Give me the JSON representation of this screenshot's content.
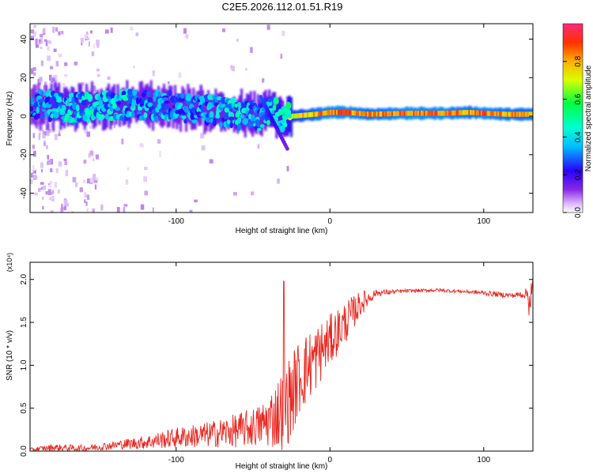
{
  "title": "C2E5.2026.112.01.51.R19",
  "colors": {
    "axis": "#000000",
    "snr_line": "#e8261f",
    "background": "#ffffff"
  },
  "colorbar": {
    "label": "Normalized spectral amplitude",
    "ticks": [
      "0.0",
      "0.2",
      "0.4",
      "0.6",
      "0.8"
    ],
    "tick_values": [
      0.0,
      0.2,
      0.4,
      0.6,
      0.8
    ],
    "range": [
      0,
      1
    ]
  },
  "chart_data": [
    {
      "type": "heatmap",
      "name": "spectrogram",
      "xlabel": "Height of straight line (km)",
      "ylabel": "Frequency (Hz)",
      "xlim": [
        -195,
        132
      ],
      "ylim": [
        -50,
        48
      ],
      "xticks": [
        -100,
        0,
        100
      ],
      "xtick_labels": [
        "-100",
        "0",
        "100"
      ],
      "yticks": [
        -40,
        -20,
        0,
        20,
        40
      ],
      "ytick_labels": [
        "-40",
        "-20",
        "0",
        "20",
        "40"
      ],
      "ridge": [
        {
          "x": -192,
          "freq": 6,
          "amp": 0.35
        },
        {
          "x": -180,
          "freq": 5,
          "amp": 0.45
        },
        {
          "x": -165,
          "freq": 4,
          "amp": 0.45
        },
        {
          "x": -150,
          "freq": 5,
          "amp": 0.45
        },
        {
          "x": -135,
          "freq": 6,
          "amp": 0.45
        },
        {
          "x": -120,
          "freq": 6,
          "amp": 0.4
        },
        {
          "x": -105,
          "freq": 5,
          "amp": 0.4
        },
        {
          "x": -90,
          "freq": 4,
          "amp": 0.4
        },
        {
          "x": -75,
          "freq": 3,
          "amp": 0.4
        },
        {
          "x": -60,
          "freq": 1,
          "amp": 0.45
        },
        {
          "x": -45,
          "freq": 0,
          "amp": 0.4
        },
        {
          "x": -38,
          "freq": 3,
          "amp": 0.5
        },
        {
          "x": -30,
          "freq": -2,
          "amp": 0.45
        },
        {
          "x": -25,
          "freq": 0,
          "amp": 0.75
        },
        {
          "x": -10,
          "freq": 1,
          "amp": 0.85
        },
        {
          "x": 0,
          "freq": 2,
          "amp": 0.9
        },
        {
          "x": 10,
          "freq": 2,
          "amp": 0.9
        },
        {
          "x": 25,
          "freq": 1,
          "amp": 0.85
        },
        {
          "x": 50,
          "freq": 1.5,
          "amp": 0.9
        },
        {
          "x": 75,
          "freq": 1.5,
          "amp": 0.9
        },
        {
          "x": 90,
          "freq": 2,
          "amp": 0.85
        },
        {
          "x": 100,
          "freq": 1.5,
          "amp": 0.9
        },
        {
          "x": 115,
          "freq": 1,
          "amp": 0.85
        },
        {
          "x": 130,
          "freq": 1,
          "amp": 0.85
        }
      ]
    },
    {
      "type": "line",
      "name": "snr",
      "xlabel": "Height of straight line (km)",
      "ylabel": "SNR (10 * v/v)",
      "yscale_label": "(x10⁴)",
      "xlim": [
        -195,
        132
      ],
      "ylim": [
        0,
        2.2
      ],
      "xticks": [
        -100,
        0,
        100
      ],
      "xtick_labels": [
        "-100",
        "0",
        "100"
      ],
      "yticks": [
        0.0,
        0.5,
        1.0,
        1.5,
        2.0
      ],
      "ytick_labels": [
        "0.0",
        "0.5",
        "1.0",
        "1.5",
        "2.0"
      ],
      "series": [
        {
          "name": "SNR",
          "x": [
            -195,
            -180,
            -160,
            -140,
            -120,
            -100,
            -80,
            -60,
            -45,
            -35,
            -30,
            -25,
            -20,
            -10,
            0,
            10,
            20,
            30,
            50,
            70,
            90,
            100,
            110,
            120,
            128,
            130
          ],
          "values": [
            0.02,
            0.05,
            0.04,
            0.08,
            0.12,
            0.18,
            0.22,
            0.28,
            0.35,
            0.5,
            0.6,
            0.75,
            0.95,
            1.15,
            1.35,
            1.55,
            1.75,
            1.85,
            1.87,
            1.88,
            1.86,
            1.85,
            1.83,
            1.82,
            1.85,
            1.85
          ],
          "spread": [
            0.02,
            0.04,
            0.04,
            0.05,
            0.08,
            0.12,
            0.15,
            0.2,
            0.25,
            0.4,
            0.5,
            0.5,
            0.45,
            0.4,
            0.3,
            0.25,
            0.15,
            0.04,
            0.02,
            0.02,
            0.02,
            0.03,
            0.03,
            0.03,
            0.06,
            0.3
          ]
        }
      ]
    }
  ]
}
